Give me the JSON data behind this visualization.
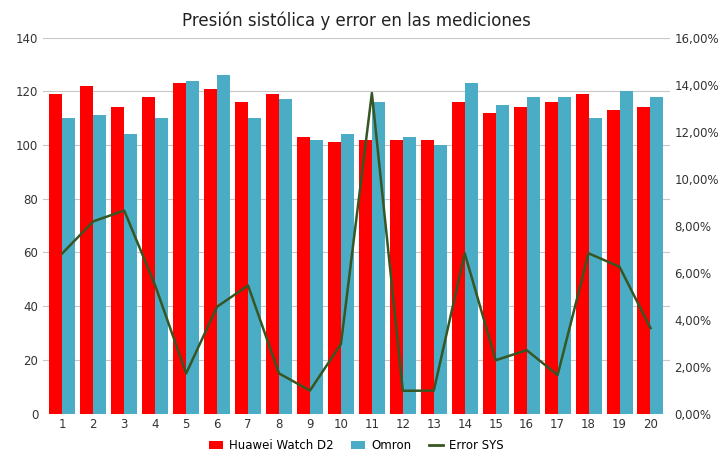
{
  "title": "Presión sistólica y error en las mediciones",
  "categories": [
    1,
    2,
    3,
    4,
    5,
    6,
    7,
    8,
    9,
    10,
    11,
    12,
    13,
    14,
    15,
    16,
    17,
    18,
    19,
    20
  ],
  "huawei": [
    119,
    122,
    114,
    118,
    123,
    121,
    116,
    119,
    103,
    101,
    102,
    102,
    102,
    116,
    112,
    114,
    116,
    119,
    113,
    114
  ],
  "omron": [
    110,
    111,
    104,
    110,
    124,
    126,
    110,
    117,
    102,
    104,
    116,
    103,
    100,
    123,
    115,
    118,
    118,
    110,
    120,
    118
  ],
  "error_sys": [
    0.0682,
    0.0818,
    0.0864,
    0.0545,
    0.0171,
    0.0455,
    0.0545,
    0.0171,
    0.0098,
    0.0296,
    0.1364,
    0.0097,
    0.0098,
    0.0682,
    0.0227,
    0.027,
    0.0164,
    0.0682,
    0.0625,
    0.0364
  ],
  "bar_color_huawei": "#FF0000",
  "bar_color_omron": "#4bacc6",
  "line_color_error": "#375623",
  "ylim_left": [
    0,
    140
  ],
  "ylim_right": [
    0,
    0.16
  ],
  "yticks_left": [
    0,
    20,
    40,
    60,
    80,
    100,
    120,
    140
  ],
  "yticks_right": [
    0.0,
    0.02,
    0.04,
    0.06,
    0.08,
    0.1,
    0.12,
    0.14,
    0.16
  ],
  "legend_labels": [
    "Huawei Watch D2",
    "Omron",
    "Error SYS"
  ],
  "background_color": "#ffffff",
  "grid_color": "#c8c8c8",
  "title_fontsize": 12,
  "bar_width": 0.42,
  "tick_fontsize": 8.5
}
